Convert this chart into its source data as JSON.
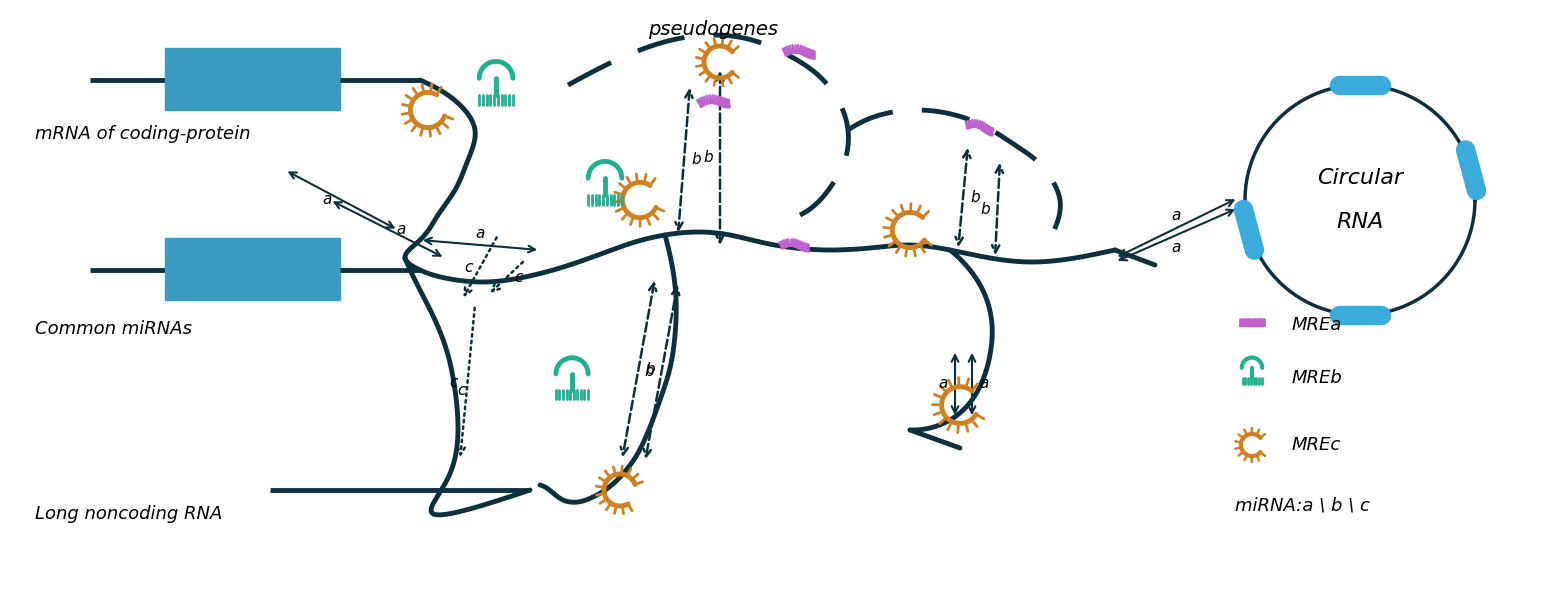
{
  "bg_color": "#ffffff",
  "mrna_rect_color": "#3a9abf",
  "dark_rna_color": "#0d3040",
  "mre_a_color": "#c060d0",
  "mre_b_color": "#20b090",
  "mre_c_color": "#d08020",
  "circular_rna_color": "#3aabdb",
  "circular_ring_color": "#0d3040",
  "arrow_color": "#0d3040",
  "label_mrna": "mRNA of coding-protein",
  "label_mirna": "Common miRNAs",
  "label_lncrna": "Long noncoding RNA",
  "label_pseudogenes": "pseudogenes",
  "label_circular_1": "Circular",
  "label_circular_2": "RNA",
  "legend_mrea": "MREa",
  "legend_mreb": "MREb",
  "legend_mrec": "MREc",
  "legend_mirna": "miRNA:a \\ b \\ c",
  "font_size": 13
}
